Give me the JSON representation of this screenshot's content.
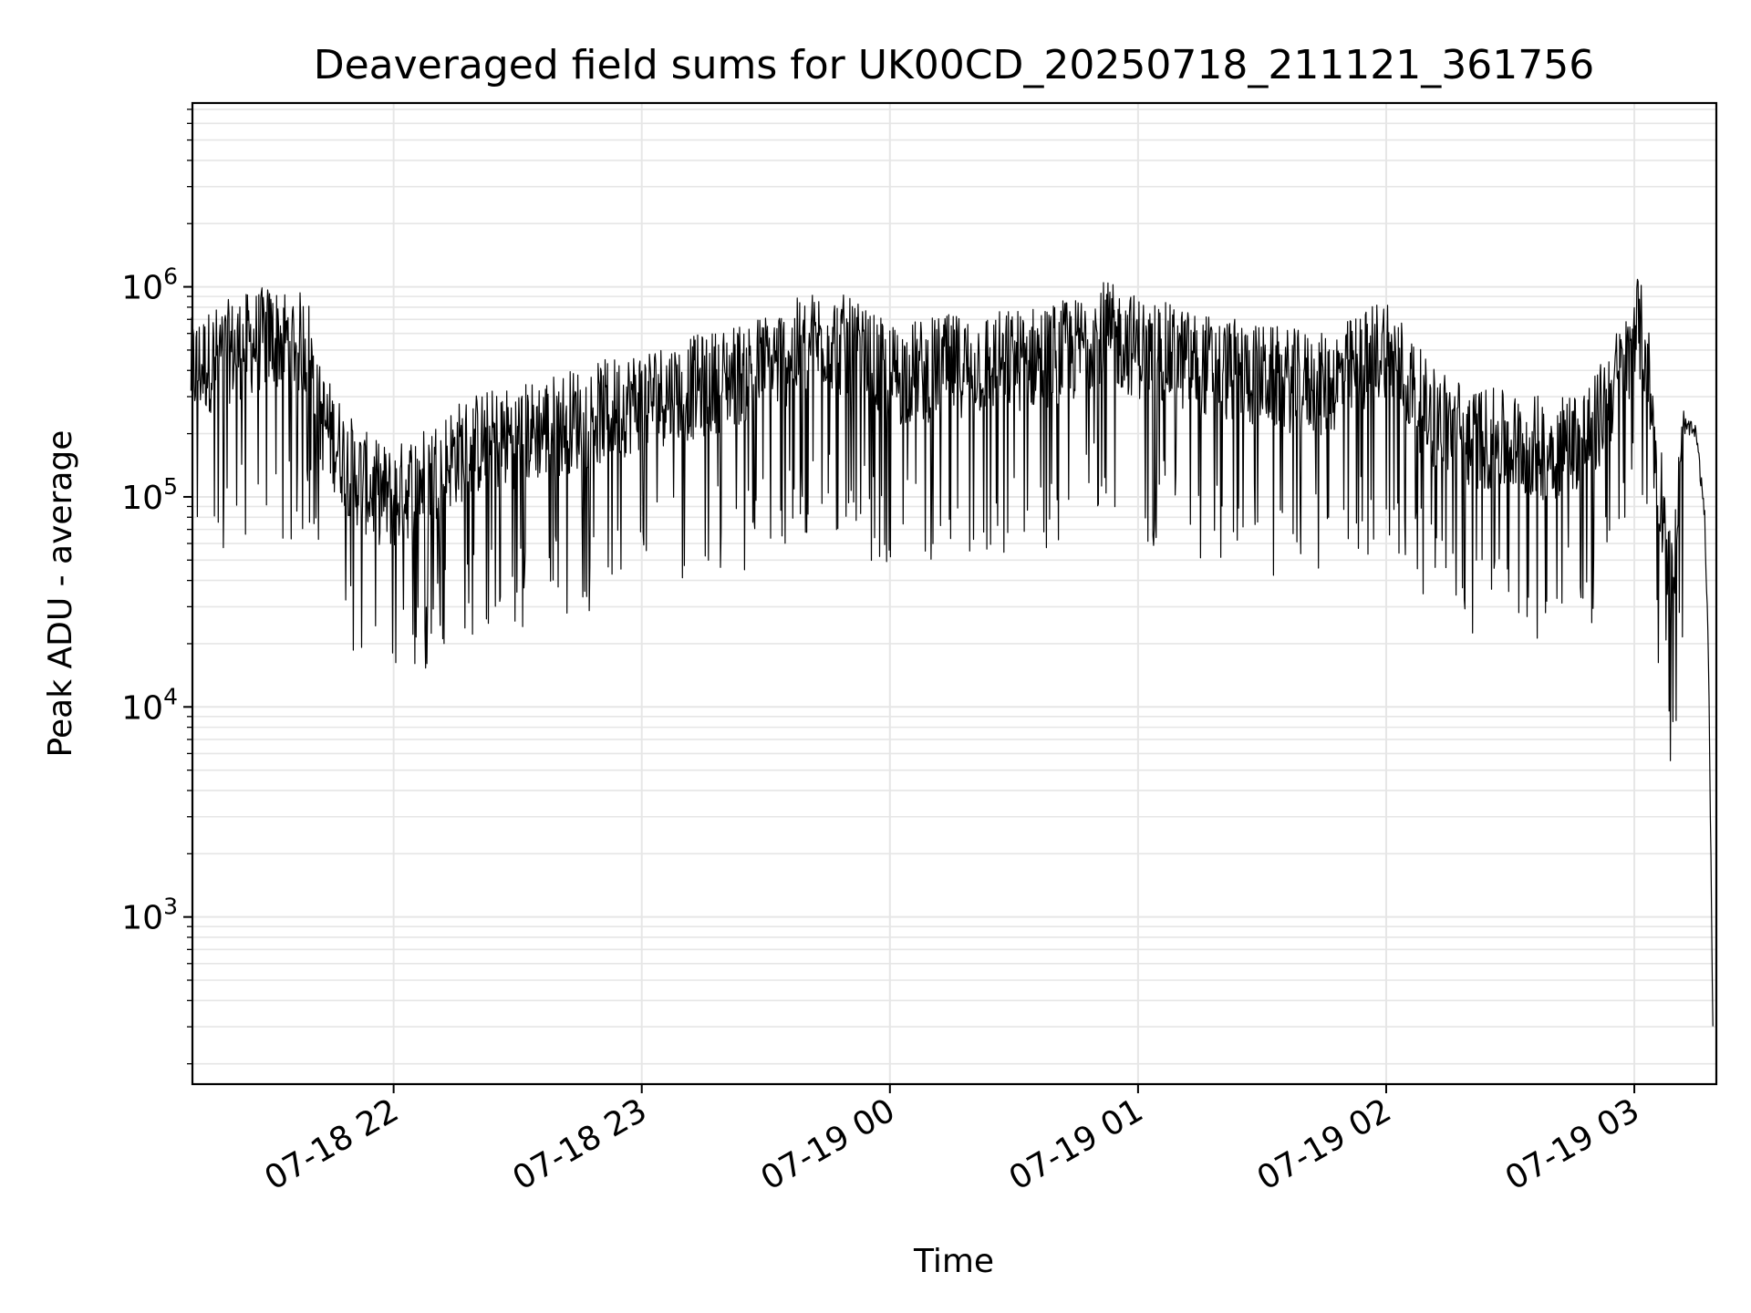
{
  "chart_data": {
    "type": "line",
    "title": "Deaveraged field sums for UK00CD_20250718_211121_361756",
    "xlabel": "Time",
    "ylabel": "Peak ADU - average",
    "yscale": "log",
    "ylim": [
      160,
      7500000
    ],
    "xlim": [
      "2025-07-18 21:11:21",
      "2025-07-19 03:19:50"
    ],
    "grid": true,
    "line_color": "#000000",
    "x_ticks": [
      {
        "t": "2025-07-18 22:00",
        "label": "07-18 22"
      },
      {
        "t": "2025-07-18 23:00",
        "label": "07-18 23"
      },
      {
        "t": "2025-07-19 00:00",
        "label": "07-19 00"
      },
      {
        "t": "2025-07-19 01:00",
        "label": "07-19 01"
      },
      {
        "t": "2025-07-19 02:00",
        "label": "07-19 02"
      },
      {
        "t": "2025-07-19 03:00",
        "label": "07-19 03"
      }
    ],
    "y_ticks": [
      {
        "value": 1000,
        "base": "10",
        "exp": "3"
      },
      {
        "value": 10000,
        "base": "10",
        "exp": "4"
      },
      {
        "value": 100000,
        "base": "10",
        "exp": "5"
      },
      {
        "value": 1000000,
        "base": "10",
        "exp": "6"
      }
    ],
    "series": [
      {
        "x": [
          "2025-07-18 21:11",
          "2025-07-18 21:20",
          "2025-07-18 21:30",
          "2025-07-18 21:35",
          "2025-07-18 21:38",
          "2025-07-18 21:40",
          "2025-07-18 21:41",
          "2025-07-18 21:45",
          "2025-07-18 21:50",
          "2025-07-18 21:55",
          "2025-07-18 22:00",
          "2025-07-18 22:05",
          "2025-07-18 22:10",
          "2025-07-18 22:15",
          "2025-07-18 22:20",
          "2025-07-18 22:30",
          "2025-07-18 22:40",
          "2025-07-18 22:50",
          "2025-07-18 23:00",
          "2025-07-18 23:15",
          "2025-07-18 23:30",
          "2025-07-18 23:45",
          "2025-07-19 00:00",
          "2025-07-19 00:15",
          "2025-07-19 00:30",
          "2025-07-19 00:45",
          "2025-07-19 00:50",
          "2025-07-19 01:00",
          "2025-07-19 01:15",
          "2025-07-19 01:30",
          "2025-07-19 01:45",
          "2025-07-19 01:50",
          "2025-07-19 02:00",
          "2025-07-19 02:10",
          "2025-07-19 02:20",
          "2025-07-19 02:30",
          "2025-07-19 02:40",
          "2025-07-19 02:50",
          "2025-07-19 02:55",
          "2025-07-19 02:59",
          "2025-07-19 03:00",
          "2025-07-19 03:03",
          "2025-07-19 03:05",
          "2025-07-19 03:07",
          "2025-07-19 03:09",
          "2025-07-19 03:12",
          "2025-07-19 03:15",
          "2025-07-19 03:17",
          "2025-07-19 03:18",
          "2025-07-19 03:19"
        ],
        "y": [
          450000,
          550000,
          650000,
          620000,
          600000,
          550000,
          300000,
          220000,
          150000,
          120000,
          110000,
          130000,
          150000,
          180000,
          200000,
          220000,
          250000,
          280000,
          330000,
          380000,
          480000,
          650000,
          420000,
          470000,
          500000,
          560000,
          700000,
          580000,
          480000,
          420000,
          380000,
          430000,
          600000,
          280000,
          220000,
          200000,
          190000,
          230000,
          380000,
          500000,
          800000,
          550000,
          180000,
          100000,
          40000,
          220000,
          200000,
          80000,
          15000,
          300
        ]
      }
    ]
  }
}
